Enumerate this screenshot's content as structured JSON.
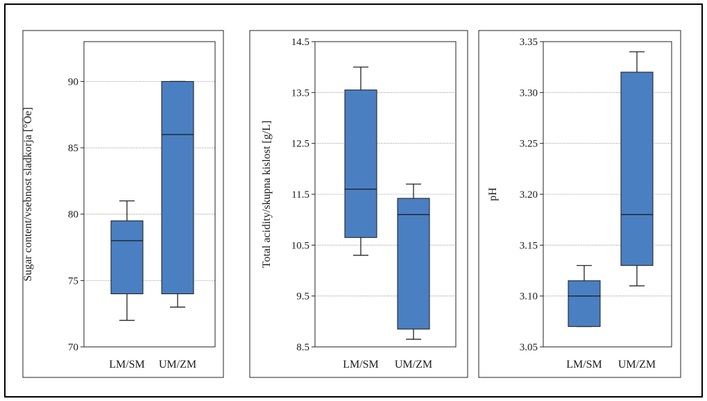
{
  "chart_data": [
    {
      "type": "box",
      "title": "",
      "ylabel": "Sugar content/vsebnost sladkorja [°Öe]",
      "ylim": [
        70,
        93
      ],
      "yticks": [
        70,
        75,
        80,
        85,
        90
      ],
      "ytick_labels": [
        "70",
        "75",
        "80",
        "85",
        "90"
      ],
      "categories": [
        "LM/SM",
        "UM/ZM"
      ],
      "boxes": [
        {
          "whisker_low": 72,
          "q1": 74,
          "median": 78,
          "q3": 79.5,
          "whisker_high": 81
        },
        {
          "whisker_low": 73,
          "q1": 74,
          "median": 86,
          "q3": 90,
          "whisker_high": 90
        }
      ],
      "grid": true,
      "color": "#4a7fc1"
    },
    {
      "type": "box",
      "title": "",
      "ylabel": "Total acidity/skupna kislost [g/L]",
      "ylim": [
        8.5,
        14.5
      ],
      "yticks": [
        8.5,
        9.5,
        10.5,
        11.5,
        12.5,
        13.5,
        14.5
      ],
      "ytick_labels": [
        "8.5",
        "9.5",
        "10.5",
        "11.5",
        "12.5",
        "13.5",
        "14.5"
      ],
      "categories": [
        "LM/SM",
        "UM/ZM"
      ],
      "boxes": [
        {
          "whisker_low": 10.3,
          "q1": 10.65,
          "median": 11.6,
          "q3": 13.55,
          "whisker_high": 14.0
        },
        {
          "whisker_low": 8.65,
          "q1": 8.85,
          "median": 11.1,
          "q3": 11.42,
          "whisker_high": 11.7
        }
      ],
      "grid": true,
      "color": "#4a7fc1"
    },
    {
      "type": "box",
      "title": "",
      "ylabel": "pH",
      "ylim": [
        3.05,
        3.35
      ],
      "yticks": [
        3.05,
        3.1,
        3.15,
        3.2,
        3.25,
        3.3,
        3.35
      ],
      "ytick_labels": [
        "3.05",
        "3.10",
        "3.15",
        "3.20",
        "3.25",
        "3.30",
        "3.35"
      ],
      "categories": [
        "LM/SM",
        "UM/ZM"
      ],
      "boxes": [
        {
          "whisker_low": 3.07,
          "q1": 3.07,
          "median": 3.1,
          "q3": 3.115,
          "whisker_high": 3.13
        },
        {
          "whisker_low": 3.11,
          "q1": 3.13,
          "median": 3.18,
          "q3": 3.32,
          "whisker_high": 3.34
        }
      ],
      "grid": true,
      "color": "#4a7fc1"
    }
  ]
}
